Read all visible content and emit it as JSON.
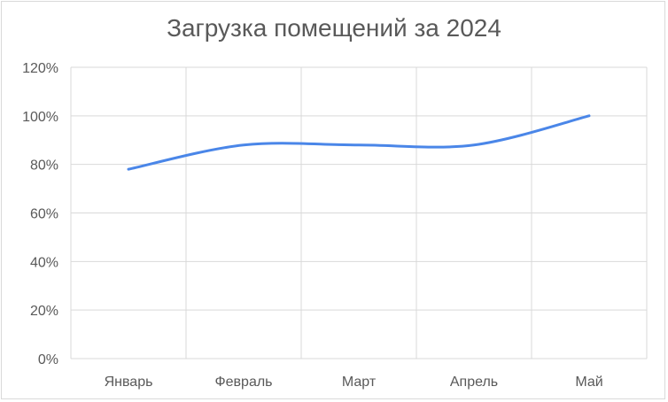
{
  "chart_data": {
    "type": "line",
    "title": "Загрузка помещений за 2024",
    "categories": [
      "Январь",
      "Февраль",
      "Март",
      "Апрель",
      "Май"
    ],
    "series": [
      {
        "values": [
          78,
          88,
          88,
          88,
          100
        ],
        "color": "#4a86e8",
        "smooth": true
      }
    ],
    "yticks": [
      "0%",
      "20%",
      "40%",
      "60%",
      "80%",
      "100%",
      "120%"
    ],
    "ylim": [
      0,
      120
    ],
    "grid": true
  }
}
